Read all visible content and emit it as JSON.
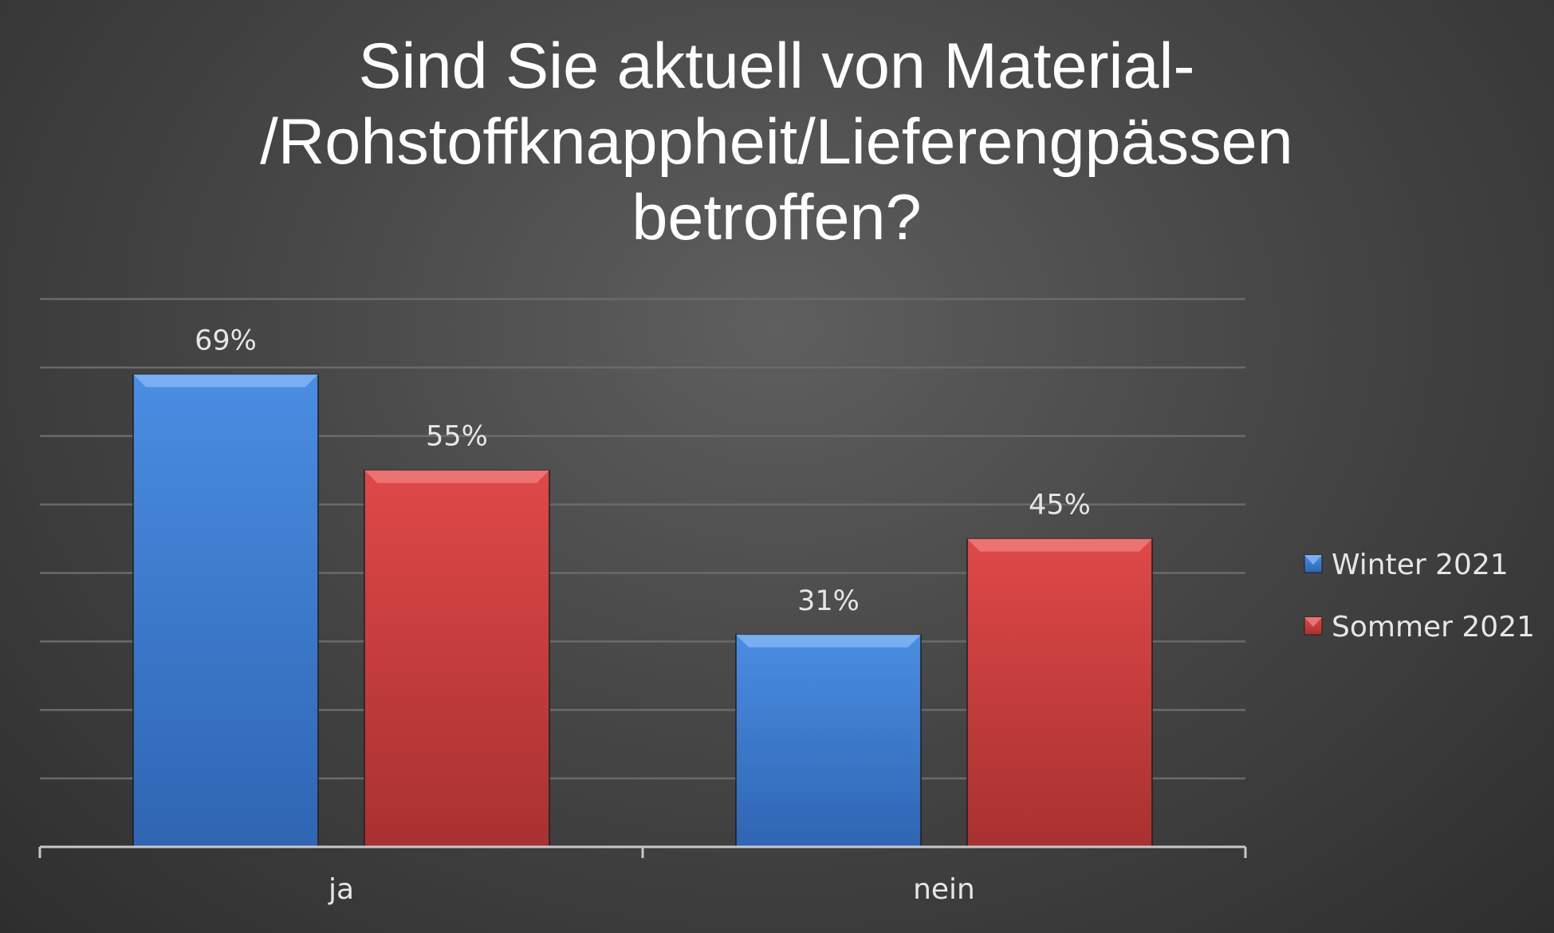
{
  "chart_data": {
    "type": "bar",
    "title_lines": [
      "Sind Sie aktuell von Material-",
      "/Rohstoffknappheit/Lieferengpässen",
      "betroffen?"
    ],
    "categories": [
      "ja",
      "nein"
    ],
    "series": [
      {
        "name": "Winter 2021",
        "values": [
          69,
          31
        ],
        "labels": [
          "69%",
          "31%"
        ],
        "color": "#3f7fd4"
      },
      {
        "name": "Sommer 2021",
        "values": [
          55,
          45
        ],
        "labels": [
          "55%",
          "45%"
        ],
        "color": "#cf3d3d"
      }
    ],
    "ylim": [
      0,
      80
    ],
    "grid": true,
    "legend_position": "right"
  }
}
